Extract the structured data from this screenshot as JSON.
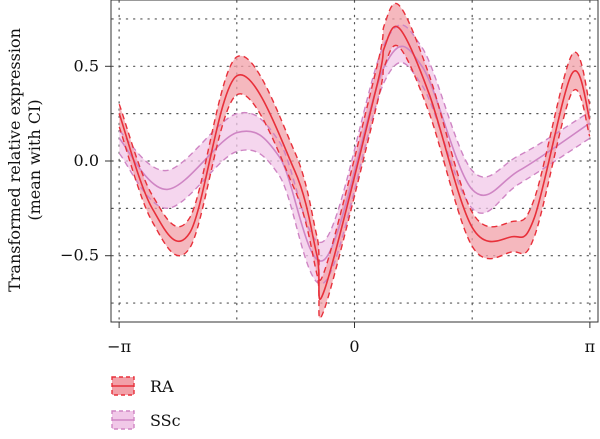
{
  "chart_data": {
    "type": "line",
    "title": "",
    "xlabel": "",
    "ylabel": [
      "Transformed relative expression",
      "(mean with CI)"
    ],
    "xlim": [
      -3.25,
      3.25
    ],
    "ylim": [
      -0.85,
      0.85
    ],
    "x_ticks": [
      {
        "value": -3.14159,
        "label": "−π"
      },
      {
        "value": 0,
        "label": "0"
      },
      {
        "value": 3.14159,
        "label": "π"
      }
    ],
    "y_ticks": [
      {
        "value": -0.5,
        "label": "−0.5"
      },
      {
        "value": 0.0,
        "label": "0.0"
      },
      {
        "value": 0.5,
        "label": "0.5"
      }
    ],
    "grid": "dotted",
    "legend_position": "bottom-left",
    "series": [
      {
        "name": "RA",
        "color": "#e8303a",
        "band_color": "#f2a0a8",
        "x": [
          -3.14,
          -2.7,
          -2.2,
          -1.57,
          -0.8,
          -0.5,
          -0.4,
          0.3,
          0.4,
          0.6,
          1.0,
          1.57,
          2.1,
          2.4,
          2.9,
          3.14
        ],
        "mean": [
          0.25,
          -0.25,
          -0.38,
          0.45,
          -0.05,
          -0.5,
          -0.68,
          0.4,
          0.6,
          0.7,
          0.35,
          -0.35,
          -0.4,
          -0.3,
          0.46,
          0.22
        ],
        "upper": [
          0.3,
          -0.18,
          -0.3,
          0.55,
          0.05,
          -0.4,
          -0.58,
          0.5,
          0.72,
          0.82,
          0.45,
          -0.27,
          -0.32,
          -0.2,
          0.56,
          0.3
        ],
        "lower": [
          0.18,
          -0.32,
          -0.46,
          0.35,
          -0.15,
          -0.6,
          -0.78,
          0.3,
          0.5,
          0.6,
          0.25,
          -0.45,
          -0.48,
          -0.4,
          0.36,
          0.13
        ]
      },
      {
        "name": "SSc",
        "color": "#cf85c4",
        "band_color": "#f1c8e8",
        "x": [
          -3.14,
          -2.5,
          -1.57,
          -1.0,
          -0.4,
          0.4,
          0.9,
          1.57,
          2.2,
          3.14
        ],
        "mean": [
          0.12,
          -0.15,
          0.15,
          0.02,
          -0.52,
          0.5,
          0.5,
          -0.15,
          -0.05,
          0.2
        ],
        "upper": [
          0.16,
          -0.05,
          0.25,
          0.1,
          -0.42,
          0.62,
          0.6,
          -0.05,
          0.03,
          0.26
        ],
        "lower": [
          0.04,
          -0.25,
          0.05,
          -0.08,
          -0.64,
          0.42,
          0.4,
          -0.25,
          -0.12,
          0.12
        ]
      }
    ]
  }
}
